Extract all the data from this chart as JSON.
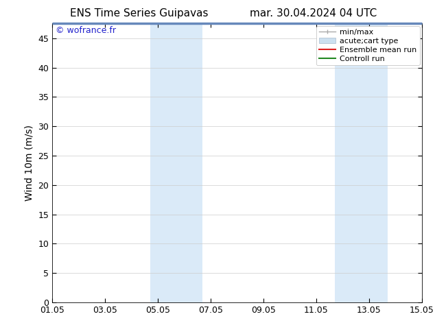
{
  "title_left": "ENS Time Series Guipavas",
  "title_right": "mar. 30.04.2024 04 UTC",
  "ylabel": "Wind 10m (m/s)",
  "watermark": "© wofrance.fr",
  "ylim": [
    0,
    47.5
  ],
  "yticks": [
    0,
    5,
    10,
    15,
    20,
    25,
    30,
    35,
    40,
    45
  ],
  "xtick_labels": [
    "01.05",
    "03.05",
    "05.05",
    "07.05",
    "09.05",
    "11.05",
    "13.05",
    "15.05"
  ],
  "xtick_positions": [
    0,
    2,
    4,
    6,
    8,
    10,
    12,
    14
  ],
  "xlim": [
    0,
    14
  ],
  "bg_color": "#ffffff",
  "plot_bg_color": "#ffffff",
  "shaded_regions": [
    {
      "xstart": 3.7,
      "xend": 5.7,
      "color": "#daeaf8"
    },
    {
      "xstart": 10.7,
      "xend": 12.7,
      "color": "#daeaf8"
    }
  ],
  "title_fontsize": 11,
  "label_fontsize": 10,
  "tick_fontsize": 9,
  "watermark_color": "#2222cc",
  "watermark_fontsize": 9,
  "legend_fontsize": 8,
  "top_bar_color": "#6688bb",
  "top_bar_height": 0.008
}
